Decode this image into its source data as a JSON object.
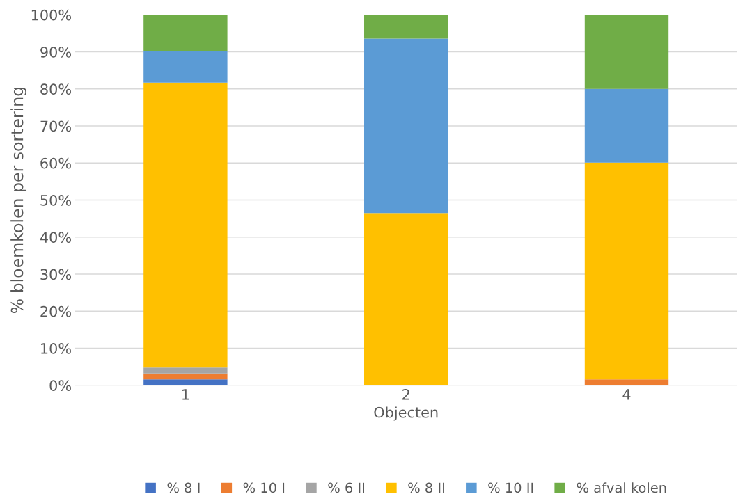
{
  "chart_data": {
    "type": "bar",
    "stacked": true,
    "xlabel": "Objecten",
    "ylabel": "% bloemkolen per sortering",
    "categories": [
      "1",
      "2",
      "4"
    ],
    "series": [
      {
        "name": "% 8 I",
        "color": "#4472c4",
        "values": [
          1.6,
          0,
          0
        ]
      },
      {
        "name": "% 10 I",
        "color": "#ed7d31",
        "values": [
          1.6,
          0,
          1.6
        ]
      },
      {
        "name": "% 6 II",
        "color": "#a5a5a5",
        "values": [
          1.6,
          0,
          0
        ]
      },
      {
        "name": "% 8 II",
        "color": "#ffc000",
        "values": [
          76.9,
          46.5,
          58.5
        ]
      },
      {
        "name": "% 10 II",
        "color": "#5b9bd5",
        "values": [
          8.5,
          47.1,
          19.9
        ]
      },
      {
        "name": "% afval kolen",
        "color": "#70ad47",
        "values": [
          9.8,
          6.4,
          20.0
        ]
      }
    ],
    "ylim": [
      0,
      100
    ],
    "yticks": [
      {
        "value": 0,
        "label": "0%"
      },
      {
        "value": 10,
        "label": "10%"
      },
      {
        "value": 20,
        "label": "20%"
      },
      {
        "value": 30,
        "label": "30%"
      },
      {
        "value": 40,
        "label": "40%"
      },
      {
        "value": 50,
        "label": "50%"
      },
      {
        "value": 60,
        "label": "60%"
      },
      {
        "value": 70,
        "label": "70%"
      },
      {
        "value": 80,
        "label": "80%"
      },
      {
        "value": 90,
        "label": "90%"
      },
      {
        "value": 100,
        "label": "100%"
      }
    ],
    "grid": "y",
    "legend": "bottom"
  }
}
